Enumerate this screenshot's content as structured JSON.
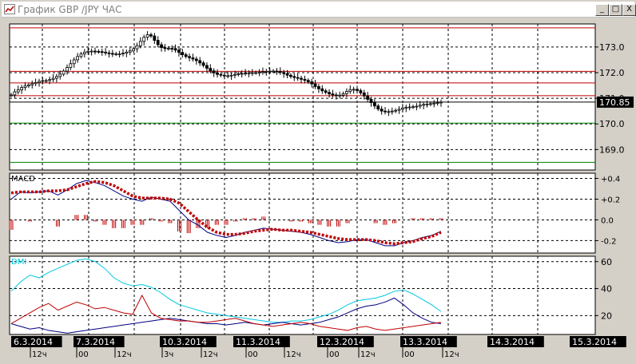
{
  "window": {
    "title": "График GBP /JPY  ЧАС",
    "buttons": {
      "minimize": "_",
      "maximize": "□",
      "close": "X"
    }
  },
  "colors": {
    "background": "#ffffff",
    "grid": "#000000",
    "candle": "#000000",
    "resistance": "#c00000",
    "support": "#008000",
    "macd_line": "#000080",
    "macd_signal": "#c00000",
    "macd_hist": "#c00000",
    "dmi_adx": "#00c8e0",
    "dmi_plus": "#000080",
    "dmi_minus": "#c00000"
  },
  "chart_data": [
    {
      "type": "candlestick",
      "title": "",
      "ylim": [
        168.2,
        173.9
      ],
      "y_ticks": [
        "173.0",
        "172.0",
        "171.0",
        "170.0",
        "169.0"
      ],
      "current_price": "170.85",
      "resistance_levels": [
        173.75,
        172.05,
        171.6,
        171.1
      ],
      "support_levels": [
        170.03,
        168.5
      ],
      "x_index_range": [
        0,
        149
      ],
      "close": [
        171.13,
        171.25,
        171.33,
        171.42,
        171.48,
        171.52,
        171.57,
        171.61,
        171.66,
        171.69,
        171.69,
        171.73,
        171.78,
        171.85,
        171.94,
        172.06,
        172.2,
        172.35,
        172.5,
        172.63,
        172.73,
        172.8,
        172.83,
        172.84,
        172.83,
        172.82,
        172.8,
        172.77,
        172.75,
        172.73,
        172.73,
        172.73,
        172.76,
        172.8,
        172.85,
        172.93,
        173.05,
        173.22,
        173.38,
        173.48,
        173.43,
        173.26,
        173.09,
        172.98,
        172.94,
        172.95,
        172.94,
        172.88,
        172.79,
        172.7,
        172.63,
        172.58,
        172.53,
        172.47,
        172.38,
        172.28,
        172.17,
        172.07,
        171.99,
        171.93,
        171.9,
        171.88,
        171.88,
        171.9,
        171.93,
        171.95,
        171.97,
        171.98,
        171.99,
        172.0,
        172.0,
        172.02,
        172.04,
        172.05,
        172.06,
        172.06,
        172.05,
        172.01,
        171.96,
        171.9,
        171.85,
        171.81,
        171.78,
        171.74,
        171.7,
        171.64,
        171.56,
        171.46,
        171.37,
        171.29,
        171.23,
        171.17,
        171.13,
        171.11,
        171.12,
        171.18,
        171.27,
        171.34,
        171.35,
        171.3,
        171.21,
        171.09,
        170.96,
        170.83,
        170.7,
        170.58,
        170.5,
        170.47,
        170.48,
        170.5,
        170.53,
        170.57,
        170.62,
        170.65,
        170.66,
        170.67,
        170.69,
        170.73,
        170.76,
        170.77,
        170.79,
        170.81,
        170.83,
        170.85
      ],
      "x_labels_top_row": [
        "6.3.2014",
        "7.3.2014",
        "10.3.2014",
        "11.3.2014",
        "12.3.2014",
        "13.3.2014",
        "14.3.2014",
        "15.3.2014"
      ],
      "x_labels_bottom_row": [
        "12ч",
        "00",
        "12ч",
        "3ч",
        "12ч",
        "00",
        "12ч",
        "00",
        "12ч",
        "00",
        "12ч"
      ]
    },
    {
      "type": "line",
      "title": "MACD",
      "ylim": [
        -0.32,
        0.45
      ],
      "y_ticks": [
        "+0.4",
        "+0.2",
        "0.0",
        "-0.2"
      ],
      "series": [
        {
          "name": "",
          "style": "line",
          "values": [
            0.2,
            0.27,
            0.26,
            0.27,
            0.28,
            0.24,
            0.29,
            0.35,
            0.38,
            0.36,
            0.33,
            0.28,
            0.23,
            0.2,
            0.18,
            0.22,
            0.2,
            0.18,
            0.09,
            0.0,
            -0.05,
            -0.12,
            -0.15,
            -0.17,
            -0.15,
            -0.12,
            -0.1,
            -0.08,
            -0.09,
            -0.1,
            -0.11,
            -0.12,
            -0.14,
            -0.17,
            -0.2,
            -0.22,
            -0.21,
            -0.19,
            -0.19,
            -0.22,
            -0.25,
            -0.25,
            -0.22,
            -0.2,
            -0.17,
            -0.15,
            -0.11
          ]
        },
        {
          "name": "",
          "style": "dotted",
          "values": [
            0.26,
            0.27,
            0.27,
            0.27,
            0.28,
            0.28,
            0.29,
            0.32,
            0.35,
            0.37,
            0.36,
            0.33,
            0.28,
            0.23,
            0.21,
            0.21,
            0.21,
            0.2,
            0.16,
            0.08,
            0.0,
            -0.07,
            -0.12,
            -0.14,
            -0.14,
            -0.13,
            -0.11,
            -0.1,
            -0.09,
            -0.1,
            -0.1,
            -0.11,
            -0.12,
            -0.14,
            -0.16,
            -0.18,
            -0.19,
            -0.19,
            -0.19,
            -0.2,
            -0.22,
            -0.23,
            -0.22,
            -0.21,
            -0.18,
            -0.16,
            -0.12
          ]
        },
        {
          "name": "",
          "style": "histogram",
          "values": [
            -0.06,
            0.0,
            -0.01,
            0.0,
            0.0,
            -0.04,
            0.0,
            0.03,
            0.03,
            -0.01,
            -0.03,
            -0.05,
            -0.05,
            -0.03,
            -0.03,
            0.01,
            -0.01,
            -0.02,
            -0.07,
            -0.08,
            -0.05,
            -0.05,
            -0.03,
            -0.03,
            -0.01,
            0.01,
            0.01,
            0.02,
            0.0,
            0.0,
            -0.01,
            -0.01,
            -0.02,
            -0.03,
            -0.04,
            -0.04,
            -0.02,
            0.0,
            0.0,
            -0.02,
            -0.03,
            -0.02,
            0.0,
            0.01,
            0.01,
            0.01,
            0.01
          ]
        }
      ]
    },
    {
      "type": "line",
      "title": "DMI",
      "ylim": [
        6,
        64
      ],
      "y_ticks": [
        "60",
        "40",
        "20"
      ],
      "series": [
        {
          "name": "",
          "values": [
            38,
            45,
            50,
            48,
            52,
            55,
            58,
            61,
            62,
            60,
            55,
            48,
            44,
            42,
            43,
            41,
            37,
            32,
            28,
            26,
            24,
            22,
            21,
            20,
            19,
            18,
            17,
            16,
            15,
            15,
            16,
            16,
            17,
            19,
            21,
            24,
            28,
            31,
            32,
            33,
            35,
            38,
            39,
            36,
            32,
            28,
            23
          ]
        },
        {
          "name": "",
          "values": [
            14,
            12,
            10,
            11,
            9,
            8,
            7,
            8,
            9,
            10,
            11,
            12,
            13,
            14,
            15,
            16,
            17,
            18,
            17,
            16,
            15,
            14,
            14,
            13,
            14,
            15,
            14,
            13,
            14,
            15,
            14,
            13,
            14,
            15,
            17,
            19,
            22,
            25,
            27,
            28,
            30,
            33,
            28,
            22,
            18,
            15,
            14
          ]
        },
        {
          "name": "",
          "values": [
            14,
            18,
            22,
            26,
            29,
            24,
            27,
            30,
            28,
            25,
            26,
            24,
            22,
            21,
            35,
            22,
            18,
            17,
            16,
            16,
            15,
            15,
            16,
            17,
            18,
            16,
            14,
            13,
            12,
            13,
            14,
            15,
            14,
            12,
            11,
            10,
            9,
            11,
            12,
            10,
            9,
            10,
            11,
            12,
            13,
            14,
            15
          ]
        }
      ]
    }
  ]
}
